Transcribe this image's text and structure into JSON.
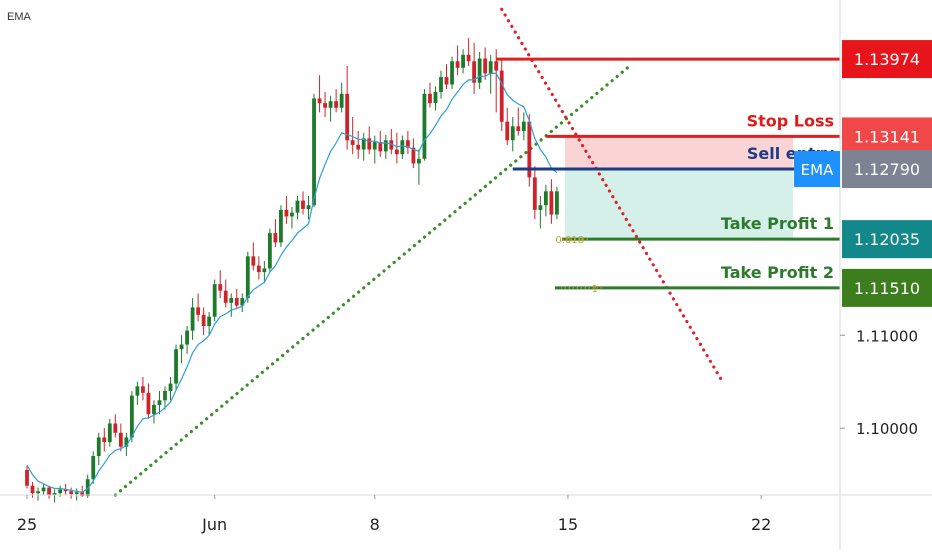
{
  "indicator_label": "EMA",
  "colors": {
    "background": "#ffffff",
    "bull": "#1e7a2b",
    "bear": "#d0222a",
    "ema": "#2f9fd8",
    "support": "#3a8f2a",
    "resistance": "#e0202a",
    "stop_line": "#e02020",
    "entry_line": "#1d3b86",
    "tp1_line": "#2d7a2d",
    "tp2_line": "#2d7a2d",
    "risk_zone": "#f9c9c9",
    "reward_zone": "#cfeee6",
    "fib": "#c9a227",
    "axis_text": "#222222"
  },
  "chart_data": {
    "type": "candlestick",
    "title": "",
    "xlabel": "",
    "ylabel": "",
    "ylim": [
      1.0928,
      1.1461
    ],
    "x_ticks": [
      {
        "label": "25",
        "bar": 0
      },
      {
        "label": "Jun",
        "bar": 34
      },
      {
        "label": "8",
        "bar": 63
      },
      {
        "label": "15",
        "bar": 98
      },
      {
        "label": "22",
        "bar": 133
      }
    ],
    "y_ticks": [
      "1.10000",
      "1.11000"
    ],
    "y_tick_values": [
      1.1,
      1.11
    ],
    "bars_per_day": 6,
    "candles": [
      [
        1.0955,
        1.096,
        1.0935,
        1.0938
      ],
      [
        1.0938,
        1.0942,
        1.0925,
        1.093
      ],
      [
        1.093,
        1.0936,
        1.0922,
        1.0932
      ],
      [
        1.0932,
        1.094,
        1.0928,
        1.0936
      ],
      [
        1.0936,
        1.0938,
        1.0924,
        1.0928
      ],
      [
        1.0928,
        1.0934,
        1.092,
        1.093
      ],
      [
        1.093,
        1.0938,
        1.0926,
        1.0934
      ],
      [
        1.0934,
        1.094,
        1.0928,
        1.0932
      ],
      [
        1.0932,
        1.0936,
        1.0924,
        1.0929
      ],
      [
        1.0929,
        1.0935,
        1.0922,
        1.0931
      ],
      [
        1.0931,
        1.0938,
        1.0926,
        1.0927
      ],
      [
        1.0927,
        1.095,
        1.0925,
        1.0945
      ],
      [
        1.0945,
        1.0975,
        1.094,
        1.097
      ],
      [
        1.097,
        1.0995,
        1.096,
        1.099
      ],
      [
        1.099,
        1.1,
        1.0975,
        1.0985
      ],
      [
        1.0985,
        1.101,
        1.098,
        1.1005
      ],
      [
        1.1005,
        1.1015,
        1.099,
        1.0995
      ],
      [
        1.0995,
        1.1005,
        1.0975,
        1.098
      ],
      [
        1.098,
        1.0995,
        1.097,
        1.099
      ],
      [
        1.099,
        1.104,
        1.0985,
        1.1035
      ],
      [
        1.1035,
        1.105,
        1.1025,
        1.1045
      ],
      [
        1.1045,
        1.1055,
        1.103,
        1.1038
      ],
      [
        1.1038,
        1.1048,
        1.101,
        1.1015
      ],
      [
        1.1015,
        1.103,
        1.1005,
        1.1025
      ],
      [
        1.1025,
        1.104,
        1.1015,
        1.103
      ],
      [
        1.103,
        1.1045,
        1.102,
        1.104
      ],
      [
        1.104,
        1.1055,
        1.103,
        1.1048
      ],
      [
        1.1048,
        1.109,
        1.104,
        1.1085
      ],
      [
        1.1085,
        1.11,
        1.107,
        1.109
      ],
      [
        1.109,
        1.111,
        1.108,
        1.1105
      ],
      [
        1.1105,
        1.114,
        1.1095,
        1.113
      ],
      [
        1.113,
        1.1145,
        1.1115,
        1.1122
      ],
      [
        1.1122,
        1.113,
        1.11,
        1.111
      ],
      [
        1.111,
        1.1125,
        1.11,
        1.112
      ],
      [
        1.112,
        1.116,
        1.1115,
        1.1155
      ],
      [
        1.1155,
        1.117,
        1.114,
        1.1148
      ],
      [
        1.1148,
        1.116,
        1.113,
        1.1135
      ],
      [
        1.1135,
        1.1145,
        1.112,
        1.114
      ],
      [
        1.114,
        1.115,
        1.1128,
        1.1132
      ],
      [
        1.1132,
        1.1145,
        1.1125,
        1.114
      ],
      [
        1.114,
        1.119,
        1.1135,
        1.1185
      ],
      [
        1.1185,
        1.12,
        1.117,
        1.1175
      ],
      [
        1.1175,
        1.1185,
        1.116,
        1.1168
      ],
      [
        1.1168,
        1.118,
        1.1158,
        1.1172
      ],
      [
        1.1172,
        1.1215,
        1.1168,
        1.121
      ],
      [
        1.121,
        1.1225,
        1.1195,
        1.12
      ],
      [
        1.12,
        1.124,
        1.1195,
        1.1235
      ],
      [
        1.1235,
        1.125,
        1.122,
        1.1228
      ],
      [
        1.1228,
        1.1238,
        1.1215,
        1.1232
      ],
      [
        1.1232,
        1.125,
        1.1225,
        1.1245
      ],
      [
        1.1245,
        1.1255,
        1.123,
        1.1236
      ],
      [
        1.1236,
        1.125,
        1.1225,
        1.124
      ],
      [
        1.124,
        1.136,
        1.1238,
        1.1355
      ],
      [
        1.1355,
        1.138,
        1.134,
        1.135
      ],
      [
        1.135,
        1.1362,
        1.1335,
        1.1345
      ],
      [
        1.1345,
        1.1358,
        1.133,
        1.1352
      ],
      [
        1.1352,
        1.1365,
        1.134,
        1.1345
      ],
      [
        1.1345,
        1.1372,
        1.134,
        1.136
      ],
      [
        1.136,
        1.139,
        1.13,
        1.131
      ],
      [
        1.131,
        1.1335,
        1.1295,
        1.1305
      ],
      [
        1.1305,
        1.132,
        1.129,
        1.13
      ],
      [
        1.13,
        1.1318,
        1.1288,
        1.1312
      ],
      [
        1.1312,
        1.1325,
        1.1295,
        1.13
      ],
      [
        1.13,
        1.1315,
        1.1285,
        1.1308
      ],
      [
        1.1308,
        1.132,
        1.1292,
        1.1298
      ],
      [
        1.1298,
        1.1316,
        1.129,
        1.131
      ],
      [
        1.131,
        1.1322,
        1.1295,
        1.13
      ],
      [
        1.13,
        1.1318,
        1.1285,
        1.1295
      ],
      [
        1.1295,
        1.1315,
        1.129,
        1.131
      ],
      [
        1.131,
        1.132,
        1.1295,
        1.1302
      ],
      [
        1.1302,
        1.1312,
        1.128,
        1.1285
      ],
      [
        1.1285,
        1.13,
        1.1262,
        1.129
      ],
      [
        1.129,
        1.1365,
        1.1288,
        1.136
      ],
      [
        1.136,
        1.1372,
        1.1345,
        1.135
      ],
      [
        1.135,
        1.1368,
        1.1342,
        1.1362
      ],
      [
        1.1362,
        1.1385,
        1.1355,
        1.1378
      ],
      [
        1.1378,
        1.1392,
        1.1365,
        1.137
      ],
      [
        1.137,
        1.14,
        1.1365,
        1.1395
      ],
      [
        1.1395,
        1.1412,
        1.138,
        1.1388
      ],
      [
        1.1388,
        1.1408,
        1.1382,
        1.1402
      ],
      [
        1.1402,
        1.142,
        1.139,
        1.1395
      ],
      [
        1.1395,
        1.1415,
        1.136,
        1.1372
      ],
      [
        1.1372,
        1.1405,
        1.1365,
        1.1398
      ],
      [
        1.1398,
        1.141,
        1.1375,
        1.1382
      ],
      [
        1.1382,
        1.1402,
        1.136,
        1.1395
      ],
      [
        1.1395,
        1.1408,
        1.134,
        1.1385
      ],
      [
        1.1385,
        1.1398,
        1.132,
        1.133
      ],
      [
        1.133,
        1.1345,
        1.1305,
        1.131
      ],
      [
        1.131,
        1.1335,
        1.1298,
        1.1325
      ],
      [
        1.1325,
        1.1345,
        1.1315,
        1.132
      ],
      [
        1.132,
        1.134,
        1.131,
        1.133
      ],
      [
        1.133,
        1.1338,
        1.126,
        1.127
      ],
      [
        1.127,
        1.1282,
        1.1225,
        1.1235
      ],
      [
        1.1235,
        1.125,
        1.1215,
        1.124
      ],
      [
        1.124,
        1.1262,
        1.1228,
        1.1255
      ],
      [
        1.1255,
        1.1268,
        1.122,
        1.123
      ],
      [
        1.123,
        1.126,
        1.1225,
        1.1255
      ]
    ],
    "ema": [
      1.096,
      1.095,
      1.0943,
      1.094,
      1.0937,
      1.0935,
      1.0935,
      1.0934,
      1.0933,
      1.0932,
      1.0931,
      1.0935,
      1.0943,
      1.0954,
      1.0962,
      1.0971,
      1.0976,
      1.0978,
      1.0981,
      1.0991,
      1.1002,
      1.101,
      1.1011,
      1.1014,
      1.1017,
      1.1022,
      1.1028,
      1.1041,
      1.1053,
      1.1066,
      1.1081,
      1.109,
      1.1094,
      1.11,
      1.1112,
      1.112,
      1.1123,
      1.1127,
      1.1129,
      1.1131,
      1.1142,
      1.1149,
      1.1153,
      1.1157,
      1.1168,
      1.1175,
      1.1186,
      1.1195,
      1.1202,
      1.121,
      1.1215,
      1.122,
      1.1247,
      1.1269,
      1.1284,
      1.1298,
      1.1307,
      1.1318,
      1.1316,
      1.1314,
      1.1311,
      1.1311,
      1.1309,
      1.1309,
      1.1307,
      1.1307,
      1.1306,
      1.1303,
      1.1304,
      1.1303,
      1.13,
      1.1298,
      1.131,
      1.1317,
      1.1326,
      1.1336,
      1.1343,
      1.1354,
      1.1362,
      1.137,
      1.1375,
      1.1375,
      1.1379,
      1.1379,
      1.1382,
      1.1382,
      1.1371,
      1.1359,
      1.1353,
      1.1349,
      1.1346,
      1.1331,
      1.1312,
      1.13,
      1.1292,
      1.128,
      1.1275
    ],
    "support_line": {
      "from": {
        "bar": 16,
        "price": 1.0928
      },
      "to": {
        "bar": 109,
        "price": 1.1389
      }
    },
    "resistance_line": {
      "from": {
        "bar": 86,
        "price": 1.1451
      },
      "to": {
        "bar": 126,
        "price": 1.105
      }
    },
    "levels": [
      {
        "name": "Stop Loss",
        "price": 1.13141,
        "label": "1.13141",
        "text": "Stop Loss"
      },
      {
        "name": "Sell entry",
        "price": 1.1279,
        "label": "1.12790",
        "text": "Sell entry"
      },
      {
        "name": "Take Profit 1",
        "price": 1.12035,
        "label": "1.12035",
        "text": "Take Profit 1"
      },
      {
        "name": "Take Profit 2",
        "price": 1.1151,
        "label": "1.11510",
        "text": "Take Profit 2"
      },
      {
        "name": "Resistance",
        "price": 1.13974,
        "label": "1.13974",
        "text": ""
      }
    ],
    "fib_levels": [
      {
        "ratio": "0.618",
        "price": 1.12035
      },
      {
        "ratio": "1",
        "price": 1.1151
      }
    ],
    "ema_axis_tag": "EMA"
  }
}
